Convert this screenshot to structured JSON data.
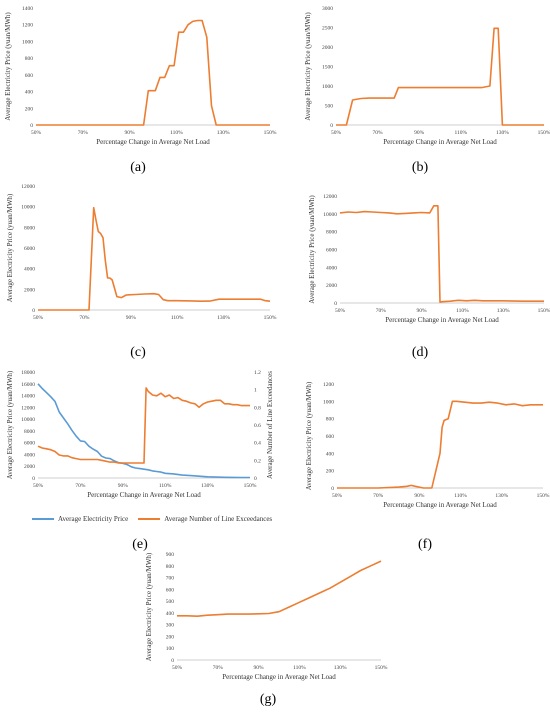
{
  "chart_data": [
    {
      "id": "a",
      "type": "line",
      "label": "(a)",
      "xlabel": "Percentage Change in Average Net Load",
      "ylabel": "Average Electricity Price (yuan/MWh)",
      "ylim": [
        0,
        1400
      ],
      "yticks": [
        0,
        200,
        400,
        600,
        800,
        1000,
        1200,
        1400
      ],
      "xlim": [
        50,
        150
      ],
      "xticks": [
        "50%",
        "70%",
        "90%",
        "110%",
        "130%",
        "150%"
      ],
      "series": [
        {
          "color": "#ED7D31",
          "x": [
            50,
            96,
            98,
            101,
            103,
            105,
            107,
            109,
            111,
            113,
            115,
            117,
            119,
            121,
            123,
            125,
            127,
            150
          ],
          "y": [
            0,
            0,
            410,
            410,
            570,
            570,
            710,
            710,
            1110,
            1110,
            1200,
            1240,
            1250,
            1250,
            1050,
            230,
            0,
            0
          ]
        }
      ]
    },
    {
      "id": "b",
      "type": "line",
      "label": "(b)",
      "xlabel": "Percentage Change in Average Net Load",
      "ylabel": "Average Electricity Price (yuan/MWh)",
      "ylim": [
        0,
        3000
      ],
      "yticks": [
        0,
        500,
        1000,
        1500,
        2000,
        2500,
        3000
      ],
      "xlim": [
        50,
        150
      ],
      "xticks": [
        "50%",
        "70%",
        "90%",
        "110%",
        "130%",
        "150%"
      ],
      "series": [
        {
          "color": "#ED7D31",
          "x": [
            50,
            55,
            58,
            62,
            66,
            70,
            74,
            78,
            80,
            90,
            100,
            110,
            120,
            124,
            126,
            128,
            130,
            131,
            150
          ],
          "y": [
            0,
            0,
            640,
            680,
            690,
            690,
            690,
            690,
            960,
            960,
            960,
            960,
            960,
            1000,
            2480,
            2480,
            0,
            0,
            0
          ]
        }
      ]
    },
    {
      "id": "c",
      "type": "line",
      "label": "(c)",
      "xlabel": "",
      "ylabel": "Average Electricity Price (yuan/MWh)",
      "ylim": [
        0,
        12000
      ],
      "yticks": [
        0,
        2000,
        4000,
        6000,
        8000,
        10000,
        12000
      ],
      "xlim": [
        50,
        150
      ],
      "xticks": [
        "50%",
        "70%",
        "90%",
        "110%",
        "130%",
        "150%"
      ],
      "series": [
        {
          "color": "#ED7D31",
          "x": [
            50,
            72,
            74,
            75,
            76,
            77,
            78,
            79,
            80,
            81,
            82,
            84,
            86,
            88,
            92,
            96,
            100,
            102,
            104,
            106,
            110,
            116,
            120,
            124,
            128,
            134,
            140,
            146,
            148,
            150
          ],
          "y": [
            0,
            0,
            9900,
            8700,
            7600,
            7400,
            7000,
            4800,
            3100,
            3100,
            2900,
            1300,
            1200,
            1450,
            1500,
            1550,
            1580,
            1500,
            1000,
            900,
            900,
            880,
            850,
            860,
            1050,
            1050,
            1050,
            1050,
            900,
            850
          ]
        }
      ]
    },
    {
      "id": "d",
      "type": "line",
      "label": "(d)",
      "xlabel": "Percentage Change in Average Net Load",
      "ylabel": "Average Electricity Price (yuan/MWh)",
      "ylim": [
        0,
        12000
      ],
      "yticks": [
        0,
        2000,
        4000,
        6000,
        8000,
        10000,
        12000
      ],
      "xlim": [
        50,
        150
      ],
      "xticks": [
        "50%",
        "70%",
        "90%",
        "110%",
        "130%",
        "150%"
      ],
      "series": [
        {
          "color": "#ED7D31",
          "x": [
            50,
            54,
            58,
            62,
            66,
            70,
            74,
            78,
            82,
            86,
            90,
            94,
            96,
            98,
            99,
            100,
            104,
            108,
            112,
            116,
            120,
            130,
            140,
            150
          ],
          "y": [
            10100,
            10200,
            10150,
            10250,
            10200,
            10150,
            10100,
            10000,
            10050,
            10100,
            10150,
            10100,
            10900,
            10900,
            100,
            150,
            200,
            300,
            250,
            300,
            250,
            250,
            200,
            200
          ]
        }
      ]
    },
    {
      "id": "e",
      "type": "line",
      "label": "(e)",
      "xlabel": "Percentage Change in Average Net Load",
      "ylabel": "Average Electricity Price (yuan/MWh)",
      "y2label": "Average Number of Line Exceedances",
      "ylim": [
        0,
        18000
      ],
      "yticks": [
        0,
        2000,
        4000,
        6000,
        8000,
        10000,
        12000,
        14000,
        16000,
        18000
      ],
      "y2lim": [
        0,
        1.2
      ],
      "y2ticks": [
        0,
        0.2,
        0.4,
        0.6,
        0.8,
        1,
        1.2
      ],
      "xlim": [
        50,
        150
      ],
      "xticks": [
        "50%",
        "70%",
        "90%",
        "110%",
        "130%",
        "150%"
      ],
      "legend": [
        "Average Electricity Price",
        "Average Number of Line Exceedances"
      ],
      "series": [
        {
          "name": "Average Electricity Price",
          "color": "#5B9BD5",
          "axis": "left",
          "x": [
            50,
            52,
            54,
            56,
            58,
            60,
            62,
            64,
            66,
            68,
            70,
            72,
            74,
            76,
            78,
            80,
            82,
            84,
            86,
            88,
            90,
            92,
            94,
            96,
            98,
            100,
            102,
            104,
            106,
            108,
            110,
            114,
            118,
            122,
            126,
            130,
            134,
            138,
            142,
            146,
            150
          ],
          "y": [
            16000,
            15200,
            14500,
            13800,
            13000,
            11200,
            10200,
            9200,
            8100,
            7100,
            6300,
            6200,
            5400,
            4900,
            4500,
            3700,
            3400,
            3300,
            2900,
            2600,
            2500,
            2300,
            1900,
            1700,
            1600,
            1500,
            1400,
            1200,
            1100,
            1000,
            800,
            700,
            500,
            400,
            300,
            200,
            150,
            120,
            100,
            90,
            80
          ]
        },
        {
          "name": "Average Number of Line Exceedances",
          "color": "#ED7D31",
          "axis": "right",
          "x": [
            50,
            52,
            54,
            56,
            58,
            60,
            62,
            64,
            66,
            68,
            70,
            74,
            78,
            80,
            82,
            84,
            86,
            88,
            92,
            96,
            100,
            101,
            102,
            104,
            106,
            108,
            110,
            112,
            114,
            116,
            118,
            120,
            122,
            124,
            126,
            128,
            130,
            132,
            134,
            136,
            138,
            140,
            142,
            144,
            146,
            148,
            150
          ],
          "y": [
            0.36,
            0.34,
            0.33,
            0.32,
            0.3,
            0.26,
            0.25,
            0.25,
            0.23,
            0.22,
            0.21,
            0.21,
            0.21,
            0.2,
            0.19,
            0.18,
            0.18,
            0.17,
            0.17,
            0.17,
            0.17,
            1.02,
            0.98,
            0.94,
            0.93,
            0.96,
            0.92,
            0.94,
            0.9,
            0.91,
            0.88,
            0.87,
            0.85,
            0.84,
            0.8,
            0.84,
            0.86,
            0.87,
            0.88,
            0.88,
            0.84,
            0.84,
            0.83,
            0.83,
            0.82,
            0.82,
            0.82
          ]
        }
      ]
    },
    {
      "id": "f",
      "type": "line",
      "label": "(f)",
      "xlabel": "Percentage Change in Average Net Load",
      "ylabel": "Average Electricity Price (yuan/MWh)",
      "ylim": [
        0,
        1200
      ],
      "yticks": [
        0,
        200,
        400,
        600,
        800,
        1000,
        1200
      ],
      "xlim": [
        50,
        150
      ],
      "xticks": [
        "50%",
        "70%",
        "90%",
        "110%",
        "130%",
        "150%"
      ],
      "series": [
        {
          "color": "#ED7D31",
          "x": [
            50,
            60,
            70,
            80,
            84,
            86,
            88,
            90,
            92,
            94,
            96,
            98,
            100,
            101,
            102,
            104,
            106,
            108,
            112,
            116,
            120,
            124,
            128,
            132,
            136,
            140,
            144,
            148,
            150
          ],
          "y": [
            0,
            0,
            0,
            10,
            20,
            30,
            20,
            10,
            0,
            0,
            0,
            200,
            400,
            700,
            780,
            800,
            1000,
            1000,
            990,
            980,
            980,
            990,
            980,
            960,
            970,
            950,
            960,
            960,
            960
          ]
        }
      ]
    },
    {
      "id": "g",
      "type": "line",
      "label": "(g)",
      "xlabel": "Percentage Change in Average Net Load",
      "ylabel": "Average Electricity Price (yuan/MWh)",
      "ylim": [
        0,
        900
      ],
      "yticks": [
        0,
        100,
        200,
        300,
        400,
        500,
        600,
        700,
        800,
        900
      ],
      "xlim": [
        50,
        150
      ],
      "xticks": [
        "50%",
        "70%",
        "90%",
        "110%",
        "130%",
        "150%"
      ],
      "series": [
        {
          "color": "#ED7D31",
          "x": [
            50,
            55,
            60,
            65,
            70,
            75,
            80,
            85,
            90,
            95,
            100,
            105,
            110,
            115,
            120,
            125,
            130,
            135,
            140,
            145,
            150
          ],
          "y": [
            375,
            375,
            372,
            380,
            385,
            390,
            390,
            390,
            392,
            395,
            410,
            450,
            490,
            530,
            570,
            610,
            660,
            710,
            760,
            800,
            840
          ]
        }
      ]
    }
  ]
}
